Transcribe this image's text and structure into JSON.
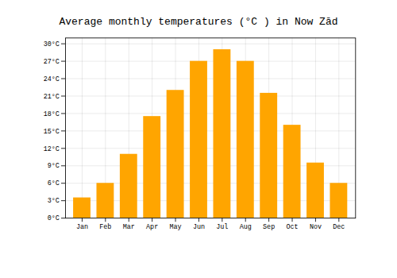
{
  "chart_data": {
    "type": "bar",
    "title": "Average monthly temperatures (°C ) in Now Zād",
    "categories": [
      "Jan",
      "Feb",
      "Mar",
      "Apr",
      "May",
      "Jun",
      "Jul",
      "Aug",
      "Sep",
      "Oct",
      "Nov",
      "Dec"
    ],
    "values": [
      3.5,
      6.0,
      11.0,
      17.5,
      22.0,
      27.0,
      29.0,
      27.0,
      21.5,
      16.0,
      9.5,
      6.0
    ],
    "color": "#FFA500",
    "ylim": [
      0,
      31
    ],
    "yticks": [
      {
        "value": 0,
        "label": "0°C"
      },
      {
        "value": 3,
        "label": "3°C"
      },
      {
        "value": 6,
        "label": "6°C"
      },
      {
        "value": 9,
        "label": "9°C"
      },
      {
        "value": 12,
        "label": "12°C"
      },
      {
        "value": 15,
        "label": "15°C"
      },
      {
        "value": 18,
        "label": "18°C"
      },
      {
        "value": 21,
        "label": "21°C"
      },
      {
        "value": 24,
        "label": "24°C"
      },
      {
        "value": 27,
        "label": "27°C"
      },
      {
        "value": 30,
        "label": "30°C"
      }
    ],
    "grid": true
  }
}
